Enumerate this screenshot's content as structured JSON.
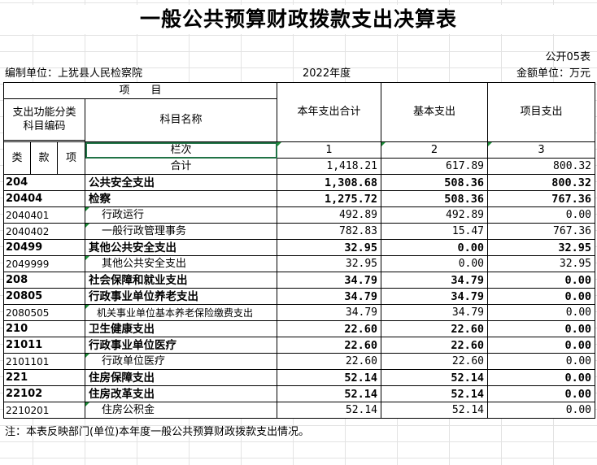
{
  "title": "一般公共预算财政拨款支出决算表",
  "form_no": "公开05表",
  "unit_label": "编制单位：上犹县人民检察院",
  "year": "2022年度",
  "amount_unit": "金额单位：万元",
  "header": {
    "item": "项　　目",
    "func_code": "支出功能分类\n科目编码",
    "subject_name": "科目名称",
    "total": "本年支出合计",
    "basic": "基本支出",
    "project": "项目支出",
    "lei": "类",
    "kuan": "款",
    "xiang": "项",
    "lanci": "栏次",
    "col1": "1",
    "col2": "2",
    "col3": "3"
  },
  "rows": [
    {
      "code": "",
      "name": "合计",
      "total": "1,418.21",
      "basic": "617.89",
      "project": "800.32",
      "bold": false,
      "level": "sum"
    },
    {
      "code": "204",
      "name": "公共安全支出",
      "total": "1,308.68",
      "basic": "508.36",
      "project": "800.32",
      "bold": true,
      "level": "0"
    },
    {
      "code": "20404",
      "name": "检察",
      "total": "1,275.72",
      "basic": "508.36",
      "project": "767.36",
      "bold": true,
      "level": "0"
    },
    {
      "code": "2040401",
      "name": "行政运行",
      "total": "492.89",
      "basic": "492.89",
      "project": "0.00",
      "bold": false,
      "level": "1"
    },
    {
      "code": "2040402",
      "name": "一般行政管理事务",
      "total": "782.83",
      "basic": "15.47",
      "project": "767.36",
      "bold": false,
      "level": "1"
    },
    {
      "code": "20499",
      "name": "其他公共安全支出",
      "total": "32.95",
      "basic": "0.00",
      "project": "32.95",
      "bold": true,
      "level": "0"
    },
    {
      "code": "2049999",
      "name": "其他公共安全支出",
      "total": "32.95",
      "basic": "0.00",
      "project": "32.95",
      "bold": false,
      "level": "1"
    },
    {
      "code": "208",
      "name": "社会保障和就业支出",
      "total": "34.79",
      "basic": "34.79",
      "project": "0.00",
      "bold": true,
      "level": "0"
    },
    {
      "code": "20805",
      "name": "行政事业单位养老支出",
      "total": "34.79",
      "basic": "34.79",
      "project": "0.00",
      "bold": true,
      "level": "0"
    },
    {
      "code": "2080505",
      "name": "机关事业单位基本养老保险缴费支出",
      "total": "34.79",
      "basic": "34.79",
      "project": "0.00",
      "bold": false,
      "level": "2"
    },
    {
      "code": "210",
      "name": "卫生健康支出",
      "total": "22.60",
      "basic": "22.60",
      "project": "0.00",
      "bold": true,
      "level": "0"
    },
    {
      "code": "21011",
      "name": "行政事业单位医疗",
      "total": "22.60",
      "basic": "22.60",
      "project": "0.00",
      "bold": true,
      "level": "0"
    },
    {
      "code": "2101101",
      "name": "行政单位医疗",
      "total": "22.60",
      "basic": "22.60",
      "project": "0.00",
      "bold": false,
      "level": "1"
    },
    {
      "code": "221",
      "name": "住房保障支出",
      "total": "52.14",
      "basic": "52.14",
      "project": "0.00",
      "bold": true,
      "level": "0"
    },
    {
      "code": "22102",
      "name": "住房改革支出",
      "total": "52.14",
      "basic": "52.14",
      "project": "0.00",
      "bold": true,
      "level": "0"
    },
    {
      "code": "2210201",
      "name": "住房公积金",
      "total": "52.14",
      "basic": "52.14",
      "project": "0.00",
      "bold": false,
      "level": "1"
    }
  ],
  "note": "注：本表反映部门(单位)本年度一般公共预算财政拨款支出情况。"
}
